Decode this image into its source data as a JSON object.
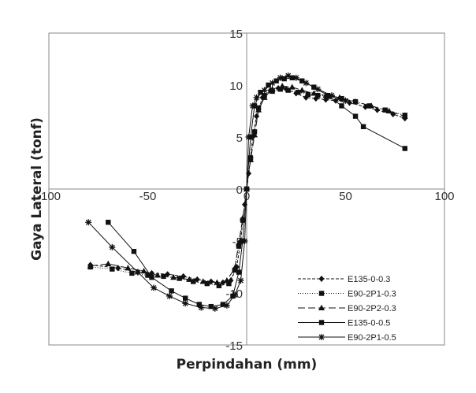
{
  "chart_data": {
    "type": "scatter",
    "xlabel": "Perpindahan (mm)",
    "ylabel": "Gaya Lateral (tonf)",
    "xlim": [
      -100,
      100
    ],
    "ylim": [
      -15,
      15
    ],
    "x_ticks": [
      -100,
      -50,
      0,
      50,
      100
    ],
    "y_ticks": [
      -15,
      -10,
      -5,
      0,
      5,
      10,
      15
    ],
    "x_tick_labels": [
      "-100",
      "-50",
      "0",
      "50",
      "100"
    ],
    "y_tick_labels": [
      "-15",
      "-10",
      "-5",
      "0",
      "5",
      "10",
      "15"
    ],
    "grid": false,
    "legend_position": "lower-right",
    "series": [
      {
        "name": "E135-0-0.3",
        "marker": "diamond",
        "dash": "dashed",
        "points": [
          [
            -79,
            -7.3
          ],
          [
            -65,
            -7.6
          ],
          [
            -55,
            -8.0
          ],
          [
            -48,
            -8.1
          ],
          [
            -40,
            -8.2
          ],
          [
            -32,
            -8.4
          ],
          [
            -25,
            -8.7
          ],
          [
            -18,
            -8.9
          ],
          [
            -12,
            -9.0
          ],
          [
            -8,
            -8.8
          ],
          [
            -5,
            -7.5
          ],
          [
            -3,
            -5.0
          ],
          [
            -2,
            -3.0
          ],
          [
            -1,
            -1.5
          ],
          [
            0,
            0
          ],
          [
            1,
            1.5
          ],
          [
            2,
            3.0
          ],
          [
            3,
            5.0
          ],
          [
            5,
            7.0
          ],
          [
            8,
            8.8
          ],
          [
            12,
            9.5
          ],
          [
            16,
            9.7
          ],
          [
            20,
            9.6
          ],
          [
            25,
            9.2
          ],
          [
            30,
            8.8
          ],
          [
            35,
            8.7
          ],
          [
            40,
            8.6
          ],
          [
            45,
            8.5
          ],
          [
            52,
            8.3
          ],
          [
            60,
            7.9
          ],
          [
            66,
            7.6
          ],
          [
            74,
            7.2
          ],
          [
            80,
            6.8
          ]
        ]
      },
      {
        "name": "E90-2P1-0.3",
        "marker": "square",
        "dash": "dotted",
        "points": [
          [
            -79,
            -7.5
          ],
          [
            -68,
            -7.7
          ],
          [
            -58,
            -8.1
          ],
          [
            -50,
            -8.3
          ],
          [
            -42,
            -8.4
          ],
          [
            -34,
            -8.6
          ],
          [
            -27,
            -8.9
          ],
          [
            -20,
            -9.1
          ],
          [
            -14,
            -9.3
          ],
          [
            -9,
            -9.1
          ],
          [
            -6,
            -7.8
          ],
          [
            -4,
            -5.5
          ],
          [
            -2,
            -3.0
          ],
          [
            0,
            0
          ],
          [
            2,
            3.0
          ],
          [
            4,
            5.5
          ],
          [
            6,
            7.8
          ],
          [
            9,
            9.0
          ],
          [
            13,
            9.4
          ],
          [
            17,
            9.6
          ],
          [
            21,
            9.5
          ],
          [
            26,
            9.3
          ],
          [
            31,
            9.1
          ],
          [
            36,
            9.0
          ],
          [
            42,
            8.9
          ],
          [
            48,
            8.7
          ],
          [
            55,
            8.4
          ],
          [
            62,
            8.0
          ],
          [
            70,
            7.6
          ],
          [
            80,
            7.1
          ]
        ]
      },
      {
        "name": "E90-2P2-0.3",
        "marker": "triangle",
        "dash": "longdash",
        "points": [
          [
            -79,
            -7.4
          ],
          [
            -70,
            -7.2
          ],
          [
            -60,
            -7.6
          ],
          [
            -52,
            -7.9
          ],
          [
            -45,
            -8.3
          ],
          [
            -37,
            -8.5
          ],
          [
            -29,
            -8.7
          ],
          [
            -22,
            -8.9
          ],
          [
            -15,
            -9.0
          ],
          [
            -10,
            -8.8
          ],
          [
            -6,
            -7.6
          ],
          [
            -4,
            -5.2
          ],
          [
            -2,
            -2.8
          ],
          [
            0,
            0
          ],
          [
            2,
            2.8
          ],
          [
            4,
            5.2
          ],
          [
            6,
            7.6
          ],
          [
            9,
            8.8
          ],
          [
            13,
            9.6
          ],
          [
            18,
            9.9
          ],
          [
            23,
            9.8
          ],
          [
            28,
            9.5
          ],
          [
            34,
            9.2
          ],
          [
            40,
            9.0
          ],
          [
            47,
            8.8
          ],
          [
            55,
            8.4
          ],
          [
            63,
            8.0
          ],
          [
            72,
            7.5
          ],
          [
            80,
            7.0
          ]
        ]
      },
      {
        "name": "E135-0-0.5",
        "marker": "square",
        "dash": "solid",
        "points": [
          [
            -70,
            -3.2
          ],
          [
            -57,
            -6.0
          ],
          [
            -48,
            -8.5
          ],
          [
            -38,
            -9.8
          ],
          [
            -31,
            -10.5
          ],
          [
            -24,
            -11.1
          ],
          [
            -18,
            -11.3
          ],
          [
            -12,
            -11.1
          ],
          [
            -7,
            -10.3
          ],
          [
            -4,
            -8.0
          ],
          [
            -2,
            -5.0
          ],
          [
            0,
            0
          ],
          [
            2,
            5.0
          ],
          [
            4,
            8.0
          ],
          [
            7,
            9.3
          ],
          [
            11,
            10.0
          ],
          [
            15,
            10.4
          ],
          [
            19,
            10.6
          ],
          [
            23,
            10.7
          ],
          [
            28,
            10.4
          ],
          [
            34,
            9.8
          ],
          [
            41,
            9.0
          ],
          [
            48,
            8.0
          ],
          [
            55,
            7.0
          ],
          [
            59,
            6.0
          ],
          [
            80,
            3.9
          ]
        ]
      },
      {
        "name": "E90-2P1-0.5",
        "marker": "star",
        "dash": "solid",
        "points": [
          [
            -80,
            -3.2
          ],
          [
            -68,
            -5.6
          ],
          [
            -55,
            -8.0
          ],
          [
            -47,
            -9.5
          ],
          [
            -39,
            -10.3
          ],
          [
            -31,
            -11.0
          ],
          [
            -23,
            -11.4
          ],
          [
            -16,
            -11.5
          ],
          [
            -10,
            -11.2
          ],
          [
            -6,
            -10.2
          ],
          [
            -3,
            -8.8
          ],
          [
            -1,
            -5.0
          ],
          [
            0,
            0
          ],
          [
            1,
            5.0
          ],
          [
            3,
            8.0
          ],
          [
            5,
            8.8
          ],
          [
            9,
            9.5
          ],
          [
            13,
            10.2
          ],
          [
            17,
            10.7
          ],
          [
            21,
            10.9
          ],
          [
            25,
            10.7
          ],
          [
            30,
            10.2
          ],
          [
            36,
            9.6
          ],
          [
            43,
            9.0
          ],
          [
            50,
            8.5
          ]
        ]
      }
    ]
  }
}
